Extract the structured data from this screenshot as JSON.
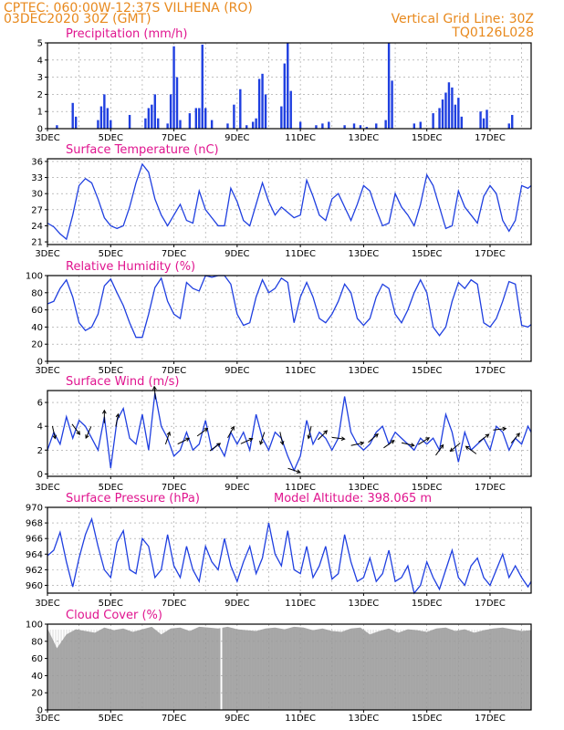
{
  "header": {
    "line1": "CPTEC:    060:00W-12:37S   VILHENA (RO)",
    "line2": "03DEC2020 30Z (GMT)",
    "grid_note": "Vertical Grid Line: 30Z",
    "code": "TQ0126L028"
  },
  "x_axis": {
    "tick_labels": [
      "3DEC",
      "5DEC",
      "7DEC",
      "9DEC",
      "11DEC",
      "13DEC",
      "15DEC",
      "17DEC"
    ],
    "start_day": 3,
    "end_day": 18.3
  },
  "colors": {
    "header": "#e8891d",
    "title": "#e0158f",
    "line": "#1f3fe0",
    "bar": "#1f3fe0",
    "cloud": "#a8a8a8",
    "cloud_gap": "#ffffff",
    "arrow": "#000000",
    "grid": "#9a9a9a"
  },
  "chart_data": [
    {
      "type": "bar",
      "title": "Precipitation (mm/h)",
      "ylim": [
        0,
        5
      ],
      "yticks": [
        0,
        1,
        2,
        3,
        4,
        5
      ],
      "x_day": [
        3.3,
        3.8,
        3.9,
        4.6,
        4.7,
        4.8,
        4.9,
        5.0,
        5.6,
        6.1,
        6.2,
        6.3,
        6.4,
        6.5,
        6.8,
        6.9,
        7.0,
        7.1,
        7.2,
        7.5,
        7.7,
        7.8,
        7.9,
        8.0,
        8.2,
        8.7,
        8.9,
        9.1,
        9.3,
        9.5,
        9.6,
        9.7,
        9.8,
        9.9,
        10.4,
        10.5,
        10.6,
        10.7,
        11.0,
        11.5,
        11.7,
        11.9,
        12.4,
        12.7,
        12.9,
        13.1,
        13.4,
        13.7,
        13.8,
        13.9,
        14.6,
        14.8,
        15.2,
        15.4,
        15.5,
        15.6,
        15.7,
        15.8,
        15.9,
        16.0,
        16.1,
        16.7,
        16.8,
        16.9,
        17.6,
        17.7
      ],
      "values": [
        0.2,
        1.5,
        0.7,
        0.5,
        1.3,
        2.0,
        1.2,
        0.5,
        0.8,
        0.6,
        1.2,
        1.4,
        2.0,
        0.6,
        0.3,
        2.0,
        4.8,
        3.0,
        0.5,
        0.9,
        1.2,
        1.2,
        4.9,
        1.2,
        0.5,
        0.3,
        1.4,
        2.3,
        0.2,
        0.4,
        0.6,
        2.9,
        3.2,
        2.0,
        1.3,
        3.8,
        5.0,
        2.2,
        0.4,
        0.2,
        0.3,
        0.4,
        0.2,
        0.3,
        0.2,
        0.1,
        0.3,
        0.5,
        5.0,
        2.8,
        0.3,
        0.4,
        0.9,
        1.2,
        1.7,
        2.1,
        2.7,
        2.4,
        1.4,
        1.8,
        0.7,
        1.0,
        0.6,
        1.1,
        0.3,
        0.8
      ]
    },
    {
      "type": "line",
      "title": "Surface Temperature (nC)",
      "ylim": [
        20.5,
        36.5
      ],
      "yticks": [
        21,
        24,
        27,
        30,
        33,
        36
      ],
      "x_day": [
        3.0,
        3.2,
        3.4,
        3.6,
        3.8,
        4.0,
        4.2,
        4.4,
        4.6,
        4.8,
        5.0,
        5.2,
        5.4,
        5.6,
        5.8,
        6.0,
        6.2,
        6.4,
        6.6,
        6.8,
        7.0,
        7.2,
        7.4,
        7.6,
        7.8,
        8.0,
        8.2,
        8.4,
        8.6,
        8.8,
        9.0,
        9.2,
        9.4,
        9.6,
        9.8,
        10.0,
        10.2,
        10.4,
        10.6,
        10.8,
        11.0,
        11.2,
        11.4,
        11.6,
        11.8,
        12.0,
        12.2,
        12.4,
        12.6,
        12.8,
        13.0,
        13.2,
        13.4,
        13.6,
        13.8,
        14.0,
        14.2,
        14.4,
        14.6,
        14.8,
        15.0,
        15.2,
        15.4,
        15.6,
        15.8,
        16.0,
        16.2,
        16.4,
        16.6,
        16.8,
        17.0,
        17.2,
        17.4,
        17.6,
        17.8,
        18.0,
        18.2,
        18.3
      ],
      "values": [
        24.5,
        23.8,
        22.5,
        21.5,
        26.0,
        31.5,
        32.8,
        32.0,
        29.0,
        25.5,
        24.0,
        23.5,
        24.0,
        27.5,
        32.0,
        35.5,
        34.0,
        29.0,
        26.0,
        24.0,
        26.0,
        28.0,
        25.0,
        24.5,
        30.5,
        27.0,
        25.5,
        24.0,
        24.0,
        31.0,
        28.5,
        25.0,
        24.0,
        28.0,
        32.0,
        28.5,
        26.0,
        27.5,
        26.5,
        25.5,
        26.0,
        32.5,
        29.5,
        26.0,
        25.0,
        29.0,
        30.0,
        27.5,
        25.0,
        28.0,
        31.5,
        30.5,
        27.0,
        24.0,
        24.5,
        30.0,
        27.5,
        26.0,
        24.0,
        28.0,
        33.5,
        31.5,
        27.5,
        23.5,
        24.0,
        30.5,
        27.5,
        26.0,
        24.5,
        29.5,
        31.5,
        30.0,
        25.0,
        23.0,
        25.0,
        31.5,
        31.0,
        31.5
      ]
    },
    {
      "type": "line",
      "title": "Relative Humidity (%)",
      "ylim": [
        0,
        100
      ],
      "yticks": [
        0,
        20,
        40,
        60,
        80,
        100
      ],
      "x_day": [
        3.0,
        3.2,
        3.4,
        3.6,
        3.8,
        4.0,
        4.2,
        4.4,
        4.6,
        4.8,
        5.0,
        5.2,
        5.4,
        5.6,
        5.8,
        6.0,
        6.2,
        6.4,
        6.6,
        6.8,
        7.0,
        7.2,
        7.4,
        7.6,
        7.8,
        8.0,
        8.2,
        8.4,
        8.6,
        8.8,
        9.0,
        9.2,
        9.4,
        9.6,
        9.8,
        10.0,
        10.2,
        10.4,
        10.6,
        10.8,
        11.0,
        11.2,
        11.4,
        11.6,
        11.8,
        12.0,
        12.2,
        12.4,
        12.6,
        12.8,
        13.0,
        13.2,
        13.4,
        13.6,
        13.8,
        14.0,
        14.2,
        14.4,
        14.6,
        14.8,
        15.0,
        15.2,
        15.4,
        15.6,
        15.8,
        16.0,
        16.2,
        16.4,
        16.6,
        16.8,
        17.0,
        17.2,
        17.4,
        17.6,
        17.8,
        18.0,
        18.2,
        18.3
      ],
      "values": [
        67,
        70,
        85,
        95,
        75,
        45,
        36,
        40,
        55,
        88,
        96,
        80,
        65,
        45,
        28,
        28,
        55,
        86,
        97,
        70,
        55,
        50,
        92,
        85,
        82,
        100,
        98,
        100,
        100,
        90,
        55,
        42,
        45,
        75,
        95,
        80,
        85,
        97,
        92,
        45,
        75,
        92,
        75,
        50,
        45,
        55,
        70,
        90,
        80,
        50,
        42,
        50,
        75,
        90,
        85,
        55,
        45,
        60,
        80,
        95,
        80,
        40,
        30,
        40,
        70,
        92,
        85,
        95,
        90,
        45,
        40,
        50,
        70,
        93,
        90,
        42,
        40,
        43
      ]
    },
    {
      "type": "line",
      "title": "Surface Wind (m/s)",
      "ylim": [
        -0.2,
        7.0
      ],
      "yticks": [
        0,
        2,
        4,
        6
      ],
      "x_day": [
        3.0,
        3.2,
        3.4,
        3.6,
        3.8,
        4.0,
        4.2,
        4.4,
        4.6,
        4.8,
        5.0,
        5.2,
        5.4,
        5.6,
        5.8,
        6.0,
        6.2,
        6.4,
        6.6,
        6.8,
        7.0,
        7.2,
        7.4,
        7.6,
        7.8,
        8.0,
        8.2,
        8.4,
        8.6,
        8.8,
        9.0,
        9.2,
        9.4,
        9.6,
        9.8,
        10.0,
        10.2,
        10.4,
        10.6,
        10.8,
        11.0,
        11.2,
        11.4,
        11.6,
        11.8,
        12.0,
        12.2,
        12.4,
        12.6,
        12.8,
        13.0,
        13.2,
        13.4,
        13.6,
        13.8,
        14.0,
        14.2,
        14.4,
        14.6,
        14.8,
        15.0,
        15.2,
        15.4,
        15.6,
        15.8,
        16.0,
        16.2,
        16.4,
        16.6,
        16.8,
        17.0,
        17.2,
        17.4,
        17.6,
        17.8,
        18.0,
        18.2,
        18.3
      ],
      "values": [
        2.0,
        3.5,
        2.5,
        4.8,
        3.0,
        4.5,
        4.0,
        3.0,
        2.0,
        4.8,
        0.5,
        4.5,
        5.5,
        3.0,
        2.5,
        5.0,
        2.0,
        6.8,
        4.0,
        3.0,
        1.5,
        2.0,
        3.5,
        2.0,
        2.5,
        4.5,
        2.0,
        2.5,
        1.5,
        3.5,
        2.5,
        3.5,
        2.0,
        5.0,
        3.0,
        2.0,
        3.5,
        3.0,
        1.5,
        0.3,
        1.5,
        4.5,
        2.5,
        3.5,
        3.0,
        2.0,
        3.0,
        6.5,
        3.5,
        2.5,
        2.0,
        2.5,
        3.5,
        4.0,
        2.5,
        3.5,
        3.0,
        2.5,
        2.0,
        3.0,
        2.5,
        3.0,
        2.0,
        5.0,
        3.5,
        1.0,
        3.5,
        2.0,
        2.5,
        3.0,
        2.0,
        4.0,
        3.5,
        2.0,
        3.0,
        2.5,
        4.0,
        3.5
      ],
      "arrows": {
        "x_day": [
          3.2,
          3.9,
          4.3,
          4.8,
          5.2,
          6.4,
          6.8,
          7.3,
          7.9,
          8.3,
          8.8,
          9.3,
          9.8,
          10.4,
          10.8,
          11.3,
          11.7,
          12.2,
          12.8,
          13.3,
          13.8,
          14.4,
          14.9,
          15.4,
          15.9,
          16.4,
          16.8,
          17.3,
          17.8
        ],
        "u": [
          0.2,
          0.6,
          -0.4,
          0.0,
          0.2,
          -0.1,
          0.3,
          0.6,
          0.8,
          0.7,
          0.5,
          0.9,
          -0.3,
          0.2,
          0.9,
          -0.2,
          0.6,
          0.8,
          0.9,
          0.7,
          0.7,
          0.9,
          0.8,
          0.5,
          -0.6,
          -0.7,
          0.4,
          0.9,
          0.6
        ],
        "v": [
          -0.9,
          -0.8,
          -0.9,
          1.0,
          1.0,
          1.0,
          0.9,
          0.3,
          0.6,
          0.5,
          0.9,
          0.4,
          -0.9,
          -0.9,
          -0.3,
          -0.9,
          0.6,
          -0.1,
          0.2,
          0.6,
          0.5,
          -0.2,
          0.5,
          0.7,
          -0.5,
          0.5,
          0.3,
          0.1,
          0.7
        ]
      }
    },
    {
      "type": "line",
      "title": "Surface Pressure (hPa)",
      "extra_label": "Model Altitude: 398.065 m",
      "ylim": [
        959,
        970
      ],
      "yticks": [
        960,
        962,
        964,
        966,
        968,
        970
      ],
      "x_day": [
        3.0,
        3.2,
        3.4,
        3.6,
        3.8,
        4.0,
        4.2,
        4.4,
        4.6,
        4.8,
        5.0,
        5.2,
        5.4,
        5.6,
        5.8,
        6.0,
        6.2,
        6.4,
        6.6,
        6.8,
        7.0,
        7.2,
        7.4,
        7.6,
        7.8,
        8.0,
        8.2,
        8.4,
        8.6,
        8.8,
        9.0,
        9.2,
        9.4,
        9.6,
        9.8,
        10.0,
        10.2,
        10.4,
        10.6,
        10.8,
        11.0,
        11.2,
        11.4,
        11.6,
        11.8,
        12.0,
        12.2,
        12.4,
        12.6,
        12.8,
        13.0,
        13.2,
        13.4,
        13.6,
        13.8,
        14.0,
        14.2,
        14.4,
        14.6,
        14.8,
        15.0,
        15.2,
        15.4,
        15.6,
        15.8,
        16.0,
        16.2,
        16.4,
        16.6,
        16.8,
        17.0,
        17.2,
        17.4,
        17.6,
        17.8,
        18.0,
        18.2,
        18.3
      ],
      "values": [
        963.8,
        964.5,
        966.8,
        963.0,
        959.8,
        963.5,
        966.5,
        968.5,
        965.0,
        962.0,
        961.0,
        965.5,
        967.0,
        962.0,
        961.5,
        966.0,
        965.0,
        961.0,
        962.0,
        966.5,
        962.5,
        961.0,
        965.0,
        962.0,
        960.5,
        965.0,
        963.0,
        962.0,
        966.0,
        962.5,
        960.5,
        963.0,
        965.0,
        961.5,
        963.5,
        968.0,
        964.0,
        962.5,
        967.0,
        962.0,
        961.5,
        965.0,
        961.0,
        962.5,
        965.0,
        960.8,
        961.5,
        966.5,
        963.0,
        960.5,
        961.0,
        963.5,
        960.5,
        961.5,
        964.5,
        960.5,
        961.0,
        962.5,
        959.0,
        960.0,
        963.0,
        961.0,
        959.5,
        962.0,
        964.5,
        961.0,
        960.0,
        962.5,
        963.5,
        961.0,
        960.0,
        962.0,
        964.0,
        961.0,
        962.5,
        961.0,
        959.8,
        960.5
      ]
    },
    {
      "type": "area",
      "title": "Cloud Cover (%)",
      "ylim": [
        0,
        100
      ],
      "yticks": [
        0,
        20,
        40,
        60,
        80,
        100
      ],
      "x_day": [
        3.0,
        3.3,
        3.6,
        3.9,
        4.2,
        4.5,
        4.8,
        5.1,
        5.4,
        5.7,
        6.0,
        6.3,
        6.6,
        6.9,
        7.2,
        7.5,
        7.8,
        8.1,
        8.4,
        8.7,
        9.0,
        9.3,
        9.6,
        9.9,
        10.2,
        10.5,
        10.8,
        11.1,
        11.4,
        11.7,
        12.0,
        12.3,
        12.6,
        12.9,
        13.2,
        13.5,
        13.8,
        14.1,
        14.4,
        14.7,
        15.0,
        15.3,
        15.6,
        15.9,
        16.2,
        16.5,
        16.8,
        17.1,
        17.4,
        17.7,
        18.0,
        18.3
      ],
      "values": [
        95,
        72,
        88,
        94,
        92,
        90,
        96,
        93,
        95,
        91,
        94,
        97,
        88,
        95,
        96,
        92,
        97,
        96,
        95,
        97,
        94,
        93,
        92,
        95,
        96,
        94,
        97,
        96,
        93,
        95,
        92,
        91,
        95,
        96,
        88,
        92,
        95,
        90,
        94,
        93,
        91,
        95,
        96,
        92,
        94,
        90,
        93,
        95,
        96,
        94,
        92,
        93
      ],
      "gap_day": 8.5
    }
  ]
}
